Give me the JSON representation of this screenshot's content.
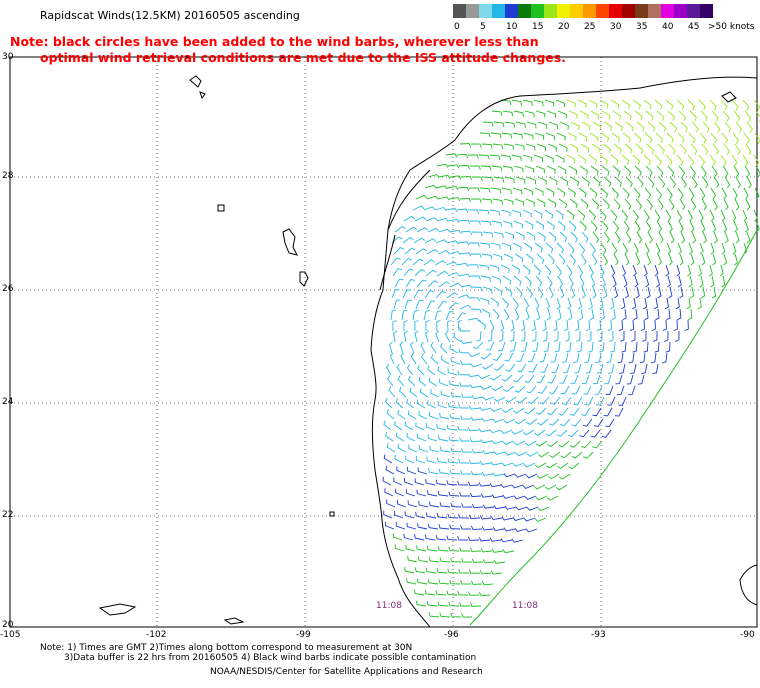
{
  "header": {
    "title": "Rapidscat Winds(12.5KM) 20160505 ascending",
    "note_line1": "Note: black circles have been added to the wind barbs, wherever less than",
    "note_line2": "optimal wind retrieval conditions are met due to the ISS attitude changes."
  },
  "legend": {
    "units": ">50 knots",
    "bins": [
      {
        "label": "0",
        "color": "#555555"
      },
      {
        "label": "",
        "color": "#999999"
      },
      {
        "label": "5",
        "color": "#7fd8e8"
      },
      {
        "label": "",
        "color": "#23b7e6"
      },
      {
        "label": "10",
        "color": "#1f3bd0"
      },
      {
        "label": "",
        "color": "#0d7a0d"
      },
      {
        "label": "15",
        "color": "#21c021"
      },
      {
        "label": "",
        "color": "#9be619"
      },
      {
        "label": "20",
        "color": "#f0f000"
      },
      {
        "label": "",
        "color": "#ffcc00"
      },
      {
        "label": "25",
        "color": "#ff9900"
      },
      {
        "label": "",
        "color": "#ff4400"
      },
      {
        "label": "30",
        "color": "#e60000"
      },
      {
        "label": "",
        "color": "#a00000"
      },
      {
        "label": "35",
        "color": "#7a3b1a"
      },
      {
        "label": "",
        "color": "#b07060"
      },
      {
        "label": "40",
        "color": "#e000e0"
      },
      {
        "label": "",
        "color": "#9a00c8"
      },
      {
        "label": "45",
        "color": "#5a1a9a"
      },
      {
        "label": "",
        "color": "#330066"
      }
    ]
  },
  "axes": {
    "lat_labels": [
      "30",
      "28",
      "26",
      "24",
      "22",
      "20"
    ],
    "lon_labels": [
      "-105",
      "-102",
      "-99",
      "-96",
      "-93",
      "-90"
    ]
  },
  "times": [
    "11:08",
    "11:08"
  ],
  "footer": {
    "line1": "Note: 1) Times are GMT 2)Times along bottom correspond to measurement at 30N",
    "line2": "3)Data buffer is 22 hrs from 20160505 4) Black wind barbs indicate possible contamination",
    "line3": "NOAA/NESDIS/Center for Satellite Applications and Research"
  }
}
